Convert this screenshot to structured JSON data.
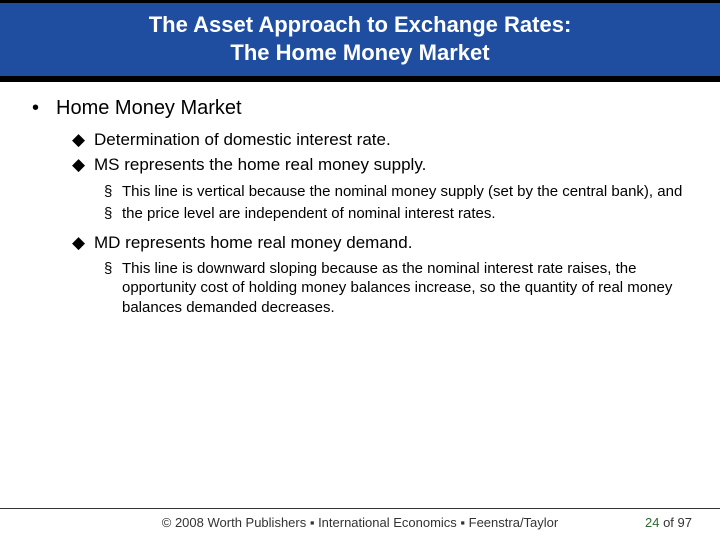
{
  "title": {
    "line1": "The Asset Approach to Exchange Rates:",
    "line2": "The Home Money Market"
  },
  "bullets": {
    "lvl1_symbol": "•",
    "lvl2_symbol": "◆",
    "lvl3_symbol": "§",
    "main": {
      "text": "Home Money Market",
      "children": [
        {
          "text": "Determination of domestic interest rate."
        },
        {
          "text": "MS represents the home real money supply.",
          "sub": [
            {
              "text": "This line is vertical because the nominal money supply (set by the central bank), and"
            },
            {
              "text": "the price level are independent of nominal interest rates."
            }
          ]
        },
        {
          "text": "MD represents home real money demand.",
          "sub": [
            {
              "text": "This line is downward sloping because as the nominal interest rate raises, the opportunity cost of holding money balances increase, so the quantity of real money balances demanded decreases."
            }
          ]
        }
      ]
    }
  },
  "footer": {
    "copyright": "© 2008 Worth Publishers ▪ International Economics ▪ Feenstra/Taylor",
    "page_current": "24",
    "page_sep": " of ",
    "page_total": "97"
  },
  "colors": {
    "title_bg": "#1f4ea1",
    "title_text": "#ffffff",
    "border": "#000000",
    "body_text": "#000000",
    "page_number": "#2e6b2e"
  }
}
